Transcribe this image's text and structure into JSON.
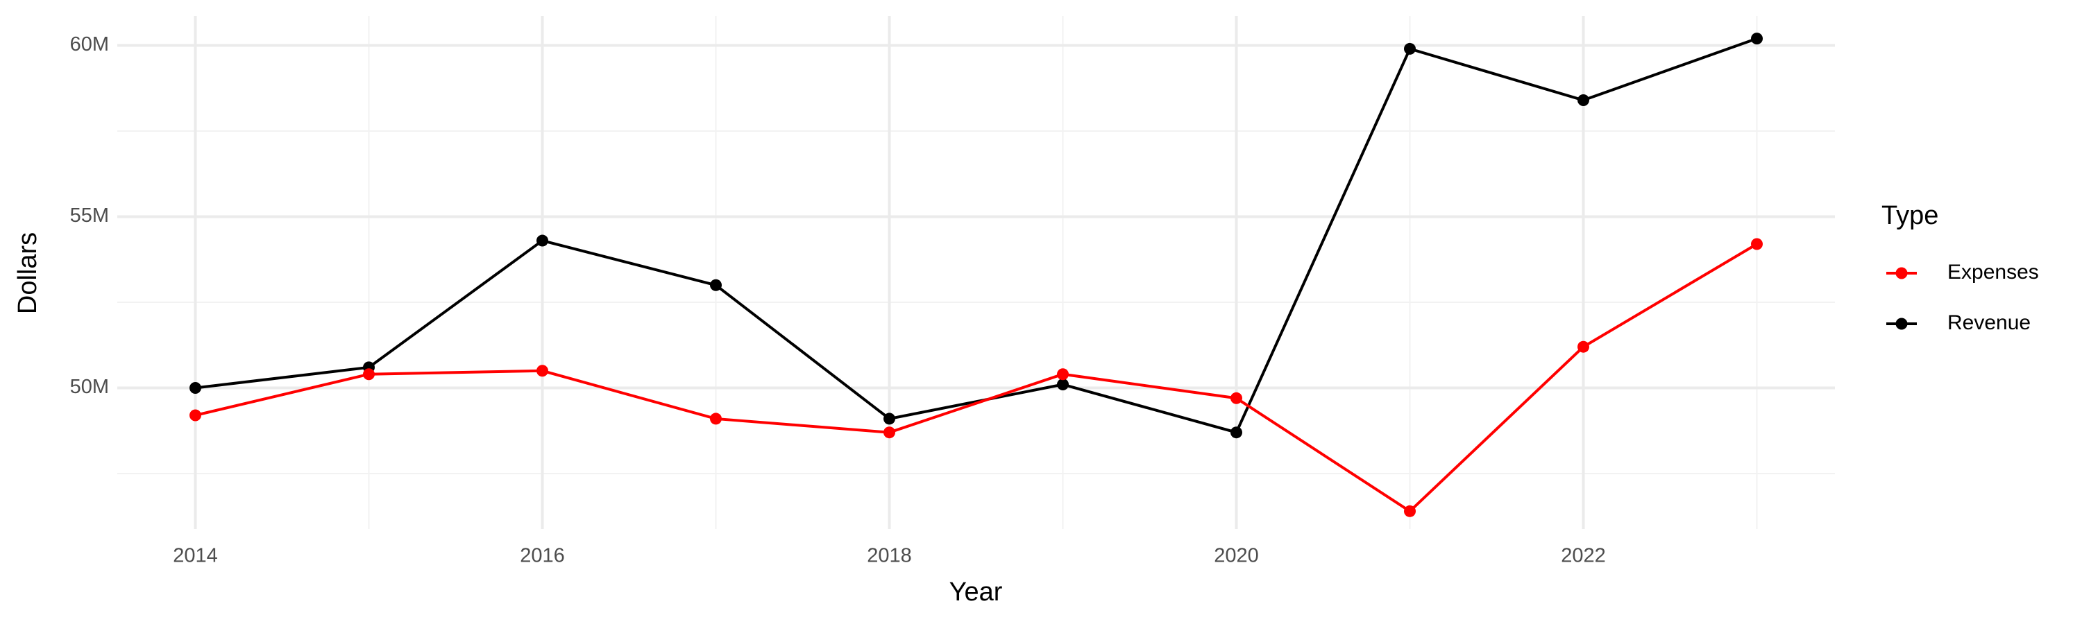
{
  "chart_data": {
    "type": "line",
    "x_label": "Year",
    "y_label": "Dollars",
    "legend_title": "Type",
    "legend_position": "right",
    "x": [
      2014,
      2015,
      2016,
      2017,
      2018,
      2019,
      2020,
      2021,
      2022,
      2023
    ],
    "series": [
      {
        "name": "Expenses",
        "color": "#ff0000",
        "values": [
          49200000,
          50400000,
          50500000,
          49100000,
          48700000,
          50400000,
          49700000,
          46400000,
          51200000,
          54200000
        ]
      },
      {
        "name": "Revenue",
        "color": "#000000",
        "values": [
          50000000,
          50600000,
          54300000,
          53000000,
          49100000,
          50100000,
          48700000,
          59900000,
          58400000,
          60200000
        ]
      }
    ],
    "xlim": [
      2013.55,
      2023.45
    ],
    "xticks": [
      2014,
      2016,
      2018,
      2020,
      2022
    ],
    "minor_xticks": [
      2015,
      2017,
      2019,
      2021,
      2023
    ],
    "ylim": [
      45880000,
      60860000
    ],
    "yticks": [
      {
        "value": 50000000,
        "label": "50M"
      },
      {
        "value": 55000000,
        "label": "55M"
      },
      {
        "value": 60000000,
        "label": "60M"
      }
    ],
    "minor_yticks": [
      47500000,
      52500000,
      57500000
    ],
    "grid": true
  }
}
